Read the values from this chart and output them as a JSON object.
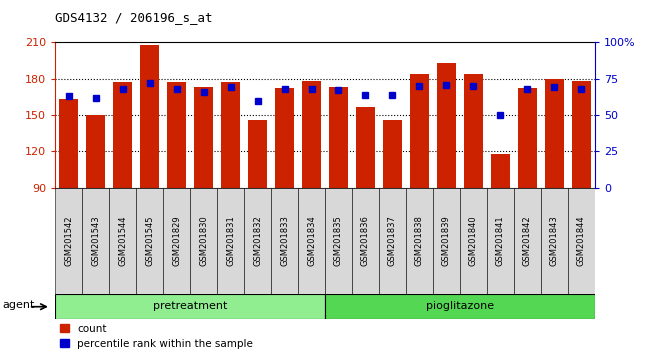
{
  "title": "GDS4132 / 206196_s_at",
  "samples": [
    "GSM201542",
    "GSM201543",
    "GSM201544",
    "GSM201545",
    "GSM201829",
    "GSM201830",
    "GSM201831",
    "GSM201832",
    "GSM201833",
    "GSM201834",
    "GSM201835",
    "GSM201836",
    "GSM201837",
    "GSM201838",
    "GSM201839",
    "GSM201840",
    "GSM201841",
    "GSM201842",
    "GSM201843",
    "GSM201844"
  ],
  "count_values": [
    163,
    150,
    177,
    208,
    177,
    173,
    177,
    146,
    172,
    178,
    173,
    157,
    146,
    184,
    193,
    184,
    118,
    172,
    180,
    178
  ],
  "percentile_values": [
    63,
    62,
    68,
    72,
    68,
    66,
    69,
    60,
    68,
    68,
    67,
    64,
    64,
    70,
    71,
    70,
    50,
    68,
    69,
    68
  ],
  "groups": {
    "pretreatment": [
      0,
      9
    ],
    "pioglitazone": [
      10,
      19
    ]
  },
  "group_colors": {
    "pretreatment": "#90EE90",
    "pioglitazone": "#54D854"
  },
  "bar_color": "#CC2200",
  "dot_color": "#0000CC",
  "ymin": 90,
  "ymax": 210,
  "yticks": [
    90,
    120,
    150,
    180,
    210
  ],
  "y2ticks": [
    0,
    25,
    50,
    75,
    100
  ],
  "y2tick_labels": [
    "0",
    "25",
    "50",
    "75",
    "100%"
  ],
  "legend_count_label": "count",
  "legend_pct_label": "percentile rank within the sample"
}
